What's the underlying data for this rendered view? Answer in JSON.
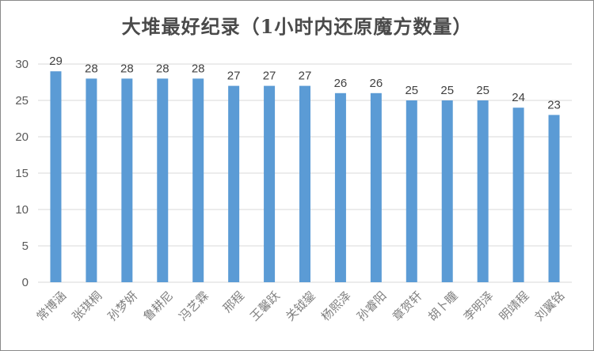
{
  "chart_data": {
    "type": "bar",
    "title": "大堆最好纪录（1小时内还原魔方数量）",
    "categories": [
      "常博涵",
      "张琪桐",
      "孙梦妍",
      "鲁耕尼",
      "冯艺霖",
      "邢程",
      "王馨跃",
      "关钺鋆",
      "杨熙泽",
      "孙睿阳",
      "章贺轩",
      "胡卜瞳",
      "李明泽",
      "明靖程",
      "刘翼铭"
    ],
    "values": [
      29,
      28,
      28,
      28,
      28,
      27,
      27,
      27,
      26,
      26,
      25,
      25,
      25,
      24,
      23
    ],
    "xlabel": "",
    "ylabel": "",
    "ylim": [
      0,
      30
    ],
    "yticks": [
      "0",
      "5",
      "10",
      "15",
      "20",
      "25",
      "30"
    ],
    "grid": true,
    "legend": "none",
    "bar_color": "#5b9bd5",
    "grid_color": "#d9d9d9"
  }
}
